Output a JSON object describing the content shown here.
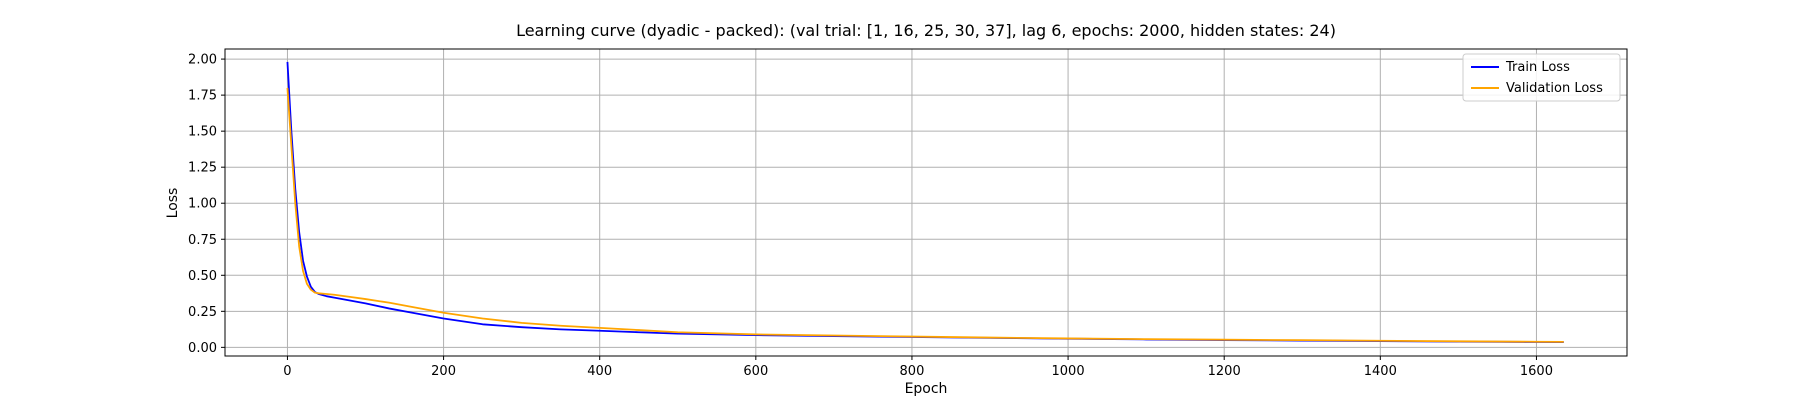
{
  "chart_data": {
    "type": "line",
    "title": "Learning curve (dyadic - packed): (val trial: [1, 16, 25, 30, 37], lag 6, epochs: 2000, hidden states: 24)",
    "xlabel": "Epoch",
    "ylabel": "Loss",
    "xlim": [
      -80,
      1716
    ],
    "ylim": [
      -0.06,
      2.07
    ],
    "xticks": [
      0,
      200,
      400,
      600,
      800,
      1000,
      1200,
      1400,
      1600
    ],
    "yticks": [
      0.0,
      0.25,
      0.5,
      0.75,
      1.0,
      1.25,
      1.5,
      1.75,
      2.0
    ],
    "xtick_labels": [
      "0",
      "200",
      "400",
      "600",
      "800",
      "1000",
      "1200",
      "1400",
      "1600"
    ],
    "ytick_labels": [
      "0.00",
      "0.25",
      "0.50",
      "0.75",
      "1.00",
      "1.25",
      "1.50",
      "1.75",
      "2.00"
    ],
    "grid": true,
    "legend_position": "top-right",
    "series": [
      {
        "name": "Train Loss",
        "color": "#0000ff",
        "x": [
          0,
          5,
          10,
          15,
          20,
          25,
          30,
          35,
          40,
          50,
          60,
          80,
          100,
          130,
          160,
          200,
          250,
          300,
          350,
          400,
          450,
          500,
          600,
          700,
          800,
          900,
          1000,
          1100,
          1200,
          1300,
          1400,
          1500,
          1600,
          1635
        ],
        "y": [
          1.98,
          1.5,
          1.1,
          0.8,
          0.6,
          0.49,
          0.42,
          0.385,
          0.37,
          0.355,
          0.345,
          0.325,
          0.305,
          0.27,
          0.24,
          0.2,
          0.16,
          0.14,
          0.125,
          0.115,
          0.105,
          0.095,
          0.085,
          0.078,
          0.072,
          0.066,
          0.06,
          0.055,
          0.05,
          0.047,
          0.043,
          0.04,
          0.037,
          0.036
        ]
      },
      {
        "name": "Validation Loss",
        "color": "#ffa500",
        "x": [
          0,
          5,
          10,
          15,
          20,
          25,
          30,
          35,
          40,
          50,
          60,
          80,
          100,
          130,
          160,
          200,
          250,
          300,
          350,
          400,
          450,
          500,
          600,
          700,
          800,
          900,
          1000,
          1100,
          1200,
          1300,
          1400,
          1500,
          1600,
          1635
        ],
        "y": [
          1.8,
          1.4,
          1.0,
          0.7,
          0.53,
          0.44,
          0.4,
          0.38,
          0.375,
          0.37,
          0.365,
          0.35,
          0.335,
          0.31,
          0.28,
          0.24,
          0.2,
          0.17,
          0.15,
          0.135,
          0.12,
          0.105,
          0.09,
          0.082,
          0.075,
          0.068,
          0.062,
          0.057,
          0.053,
          0.05,
          0.046,
          0.042,
          0.039,
          0.038
        ]
      }
    ]
  }
}
